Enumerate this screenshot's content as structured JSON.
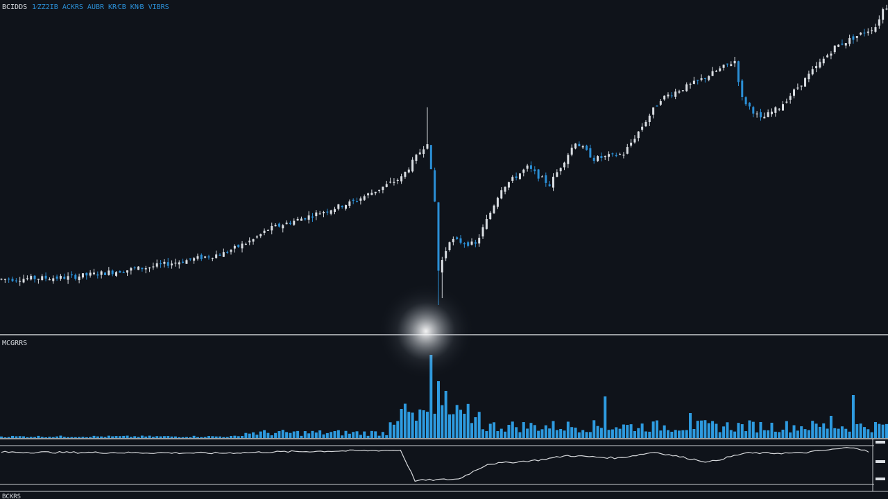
{
  "header": {
    "title": "BCIDDS",
    "subtitle": "1⁄ZZ2IB  ACKRS  AUBR  KR⁄CB  KN⁄B  VIBRS"
  },
  "volume_panel": {
    "label": "MCGRRS"
  },
  "oscillator_panel": {
    "label": "BCKRS"
  },
  "colors": {
    "background": "#0f131a",
    "up_candle": "#d9dde2",
    "down_candle": "#2b8fd6",
    "volume": "#2e9be0",
    "separator": "#c9ccd0",
    "oscillator_line": "#d6d8db",
    "glow": "#ffffff"
  },
  "chart_data": [
    {
      "type": "candlestick",
      "title": "BCIDDS",
      "xlabel": "",
      "ylabel": "",
      "grid": false,
      "points": 240,
      "shape": "gradual rise, sharp spike then crash near the middle, recovery to a new high at the right",
      "anchors": [
        [
          0,
          15
        ],
        [
          18,
          16
        ],
        [
          40,
          22
        ],
        [
          60,
          30
        ],
        [
          68,
          38
        ],
        [
          72,
          44
        ],
        [
          95,
          60
        ],
        [
          108,
          74
        ],
        [
          115,
          95
        ],
        [
          117,
          60
        ],
        [
          118,
          20
        ],
        [
          121,
          38
        ],
        [
          128,
          35
        ],
        [
          135,
          68
        ],
        [
          142,
          80
        ],
        [
          148,
          70
        ],
        [
          155,
          95
        ],
        [
          160,
          85
        ],
        [
          168,
          88
        ],
        [
          178,
          120
        ],
        [
          188,
          130
        ],
        [
          198,
          142
        ],
        [
          200,
          120
        ],
        [
          205,
          108
        ],
        [
          210,
          115
        ],
        [
          225,
          150
        ],
        [
          236,
          162
        ],
        [
          238,
          172
        ],
        [
          240,
          175
        ]
      ]
    },
    {
      "type": "bar",
      "title": "MCGRRS",
      "points": 240,
      "shape": "low flat volume, large burst at the crash, elevated afterwards",
      "spikes": [
        [
          108,
          4.2
        ],
        [
          112,
          2.5
        ],
        [
          114,
          4.0
        ],
        [
          116,
          12.0
        ],
        [
          118,
          8.2
        ],
        [
          120,
          6.8
        ],
        [
          125,
          3.5
        ],
        [
          128,
          3.0
        ],
        [
          163,
          6.0
        ],
        [
          186,
          3.6
        ],
        [
          224,
          3.2
        ],
        [
          230,
          6.2
        ]
      ]
    },
    {
      "type": "line",
      "title": "BCKRS",
      "points": 240,
      "shape": "flat, abrupt drop at the crash, choppy recovery",
      "anchors": [
        [
          0,
          62
        ],
        [
          60,
          60
        ],
        [
          80,
          63
        ],
        [
          110,
          66
        ],
        [
          114,
          5
        ],
        [
          126,
          8
        ],
        [
          134,
          38
        ],
        [
          148,
          46
        ],
        [
          156,
          55
        ],
        [
          170,
          50
        ],
        [
          180,
          62
        ],
        [
          195,
          42
        ],
        [
          205,
          60
        ],
        [
          220,
          60
        ],
        [
          235,
          72
        ],
        [
          240,
          60
        ]
      ]
    }
  ]
}
